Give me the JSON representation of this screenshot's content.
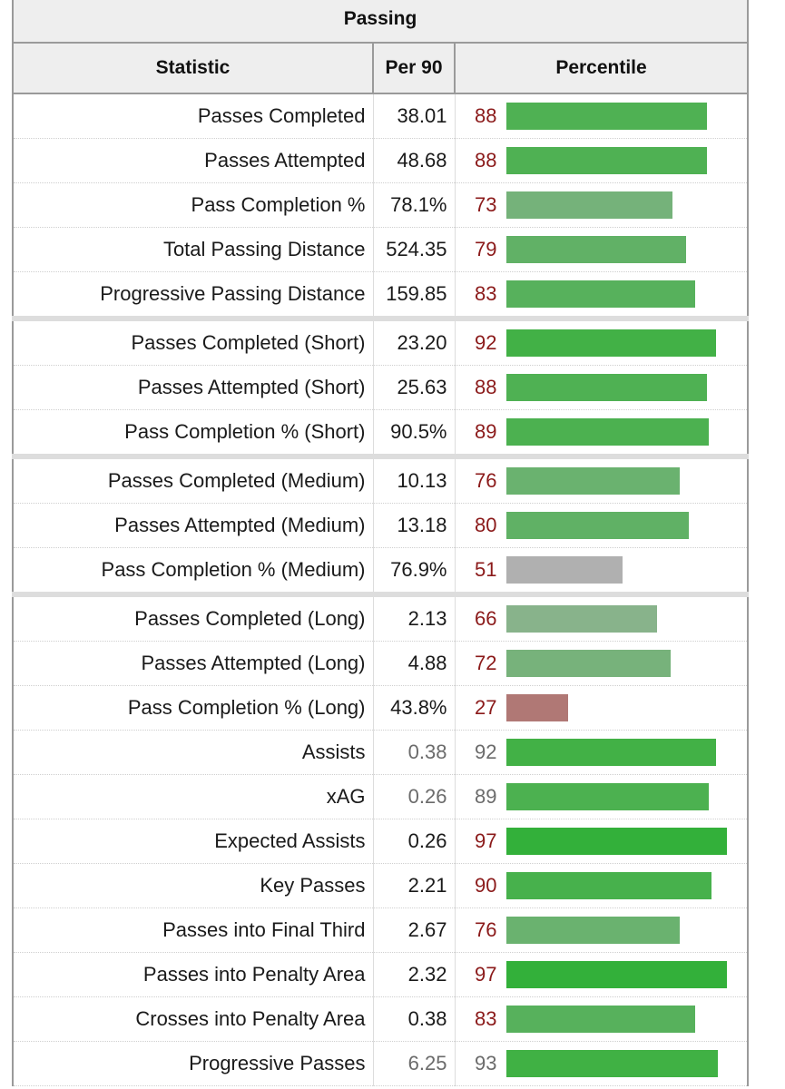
{
  "table": {
    "title": "Passing",
    "headers": {
      "statistic": "Statistic",
      "per90": "Per 90",
      "percentile": "Percentile"
    },
    "rows": [
      {
        "stat": "Passes Completed",
        "per90": "38.01",
        "pct": 88,
        "pct_label": "88",
        "bar_color": "#4fb153",
        "group_start": false,
        "dim": false
      },
      {
        "stat": "Passes Attempted",
        "per90": "48.68",
        "pct": 88,
        "pct_label": "88",
        "bar_color": "#4fb153",
        "group_start": false,
        "dim": false
      },
      {
        "stat": "Pass Completion %",
        "per90": "78.1%",
        "pct": 73,
        "pct_label": "73",
        "bar_color": "#75b27a",
        "group_start": false,
        "dim": false
      },
      {
        "stat": "Total Passing Distance",
        "per90": "524.35",
        "pct": 79,
        "pct_label": "79",
        "bar_color": "#61b166",
        "group_start": false,
        "dim": false
      },
      {
        "stat": "Progressive Passing Distance",
        "per90": "159.85",
        "pct": 83,
        "pct_label": "83",
        "bar_color": "#57b15c",
        "group_start": false,
        "dim": false
      },
      {
        "stat": "Passes Completed (Short)",
        "per90": "23.20",
        "pct": 92,
        "pct_label": "92",
        "bar_color": "#42b146",
        "group_start": true,
        "dim": false
      },
      {
        "stat": "Passes Attempted (Short)",
        "per90": "25.63",
        "pct": 88,
        "pct_label": "88",
        "bar_color": "#4fb153",
        "group_start": false,
        "dim": false
      },
      {
        "stat": "Pass Completion % (Short)",
        "per90": "90.5%",
        "pct": 89,
        "pct_label": "89",
        "bar_color": "#4cb150",
        "group_start": false,
        "dim": false
      },
      {
        "stat": "Passes Completed (Medium)",
        "per90": "10.13",
        "pct": 76,
        "pct_label": "76",
        "bar_color": "#6ab26f",
        "group_start": true,
        "dim": false
      },
      {
        "stat": "Passes Attempted (Medium)",
        "per90": "13.18",
        "pct": 80,
        "pct_label": "80",
        "bar_color": "#60b165",
        "group_start": false,
        "dim": false
      },
      {
        "stat": "Pass Completion % (Medium)",
        "per90": "76.9%",
        "pct": 51,
        "pct_label": "51",
        "bar_color": "#b0b0b0",
        "group_start": false,
        "dim": false
      },
      {
        "stat": "Passes Completed (Long)",
        "per90": "2.13",
        "pct": 66,
        "pct_label": "66",
        "bar_color": "#88b38b",
        "group_start": true,
        "dim": false
      },
      {
        "stat": "Passes Attempted (Long)",
        "per90": "4.88",
        "pct": 72,
        "pct_label": "72",
        "bar_color": "#77b27b",
        "group_start": false,
        "dim": false
      },
      {
        "stat": "Pass Completion % (Long)",
        "per90": "43.8%",
        "pct": 27,
        "pct_label": "27",
        "bar_color": "#b07875",
        "group_start": false,
        "dim": false
      },
      {
        "stat": "Assists",
        "per90": "0.38",
        "pct": 92,
        "pct_label": "92",
        "bar_color": "#42b146",
        "group_start": false,
        "dim": true
      },
      {
        "stat": "xAG",
        "per90": "0.26",
        "pct": 89,
        "pct_label": "89",
        "bar_color": "#4cb150",
        "group_start": false,
        "dim": true
      },
      {
        "stat": "Expected Assists",
        "per90": "0.26",
        "pct": 97,
        "pct_label": "97",
        "bar_color": "#33b03a",
        "group_start": false,
        "dim": false
      },
      {
        "stat": "Key Passes",
        "per90": "2.21",
        "pct": 90,
        "pct_label": "90",
        "bar_color": "#47b14c",
        "group_start": false,
        "dim": false
      },
      {
        "stat": "Passes into Final Third",
        "per90": "2.67",
        "pct": 76,
        "pct_label": "76",
        "bar_color": "#6ab26f",
        "group_start": false,
        "dim": false
      },
      {
        "stat": "Passes into Penalty Area",
        "per90": "2.32",
        "pct": 97,
        "pct_label": "97",
        "bar_color": "#33b03a",
        "group_start": false,
        "dim": false
      },
      {
        "stat": "Crosses into Penalty Area",
        "per90": "0.38",
        "pct": 83,
        "pct_label": "83",
        "bar_color": "#57b15c",
        "group_start": false,
        "dim": false
      },
      {
        "stat": "Progressive Passes",
        "per90": "6.25",
        "pct": 93,
        "pct_label": "93",
        "bar_color": "#40b144",
        "group_start": false,
        "dim": true
      }
    ]
  }
}
